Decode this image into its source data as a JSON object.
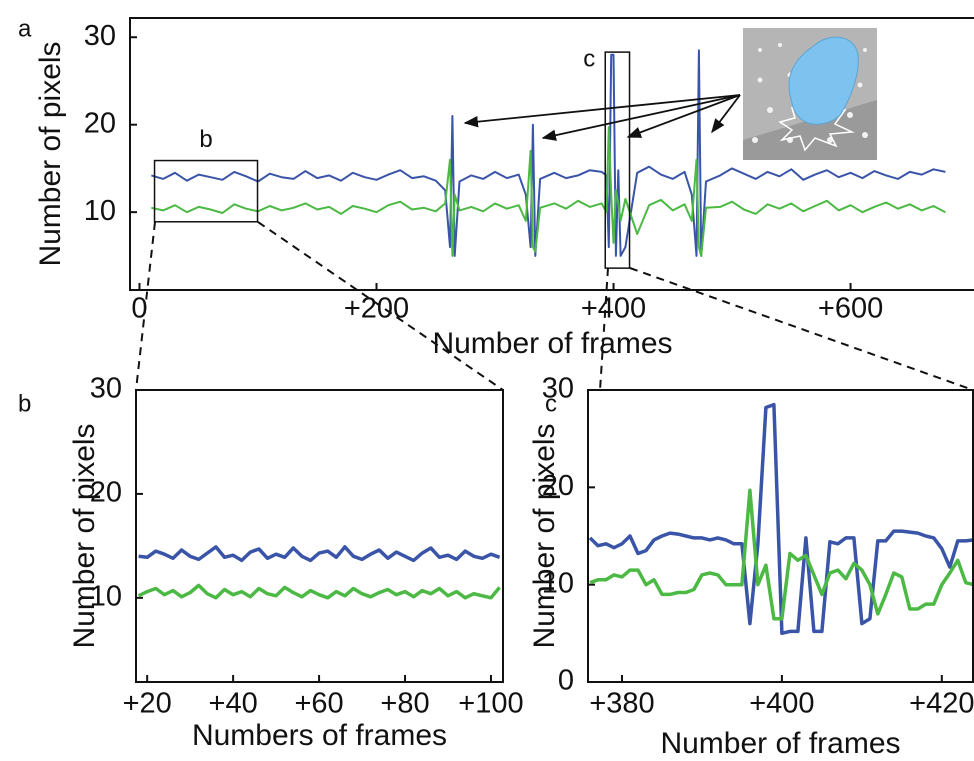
{
  "chart_data": [
    {
      "type": "line",
      "panel_label": "a",
      "ylabel": "Number of pixels",
      "xlabel": "Number of frames",
      "xlim": [
        -8,
        705
      ],
      "ylim": [
        1.1,
        32.2
      ],
      "xticks": [
        0,
        {
          "value": 200,
          "label": "+200"
        },
        {
          "value": 400,
          "label": "+400"
        },
        {
          "value": 600,
          "label": "+600"
        }
      ],
      "yticks": [
        10,
        20,
        30
      ],
      "x": [
        10,
        20,
        30,
        40,
        50,
        60,
        70,
        80,
        90,
        100,
        110,
        120,
        130,
        140,
        150,
        160,
        170,
        180,
        190,
        200,
        210,
        220,
        230,
        240,
        250,
        258,
        262,
        264,
        266,
        270,
        280,
        290,
        300,
        310,
        320,
        326,
        330,
        332,
        334,
        338,
        350,
        360,
        370,
        380,
        390,
        394,
        396,
        398,
        400,
        402,
        404,
        406,
        410,
        420,
        430,
        440,
        450,
        460,
        466,
        470,
        472,
        474,
        478,
        490,
        500,
        510,
        520,
        530,
        540,
        550,
        560,
        570,
        580,
        590,
        600,
        610,
        620,
        630,
        640,
        650,
        660,
        670,
        680
      ],
      "series": [
        {
          "color": "#3a55a8",
          "values": [
            14.2,
            13.8,
            14.5,
            13.6,
            14.3,
            14.0,
            13.7,
            14.6,
            14.1,
            13.5,
            14.4,
            14.0,
            13.8,
            14.7,
            13.9,
            14.2,
            13.6,
            14.5,
            14.0,
            13.7,
            14.3,
            14.8,
            13.9,
            14.1,
            13.6,
            12.5,
            6,
            21,
            5,
            13.5,
            14.2,
            13.8,
            14.6,
            13.9,
            14.3,
            12,
            6,
            20,
            5,
            13.8,
            14.5,
            13.9,
            14.2,
            14.8,
            14.6,
            14.2,
            6,
            28,
            28,
            5,
            14.8,
            5,
            6,
            14.5,
            15.2,
            14.3,
            13.8,
            14.6,
            12,
            5,
            28.5,
            5,
            13.5,
            14.2,
            15,
            14.4,
            13.8,
            14.6,
            14.1,
            14.9,
            13.7,
            14.3,
            14.8,
            14.0,
            14.5,
            13.9,
            14.7,
            14.2,
            13.8,
            14.6,
            14.3,
            14.9,
            14.6
          ]
        },
        {
          "color": "#4cb944",
          "values": [
            10.5,
            10.2,
            10.8,
            10.0,
            10.6,
            10.3,
            9.9,
            10.9,
            10.4,
            10.1,
            10.7,
            10.2,
            10.5,
            11.0,
            10.3,
            10.6,
            9.8,
            10.7,
            10.4,
            10.0,
            10.8,
            11.2,
            10.3,
            10.5,
            10.1,
            11,
            16,
            5,
            12,
            10.2,
            10.6,
            10.1,
            11.0,
            10.4,
            10.8,
            9,
            17,
            6,
            5.5,
            10.5,
            11.0,
            10.4,
            11.3,
            10.6,
            11,
            10,
            19.7,
            12,
            6.5,
            12.5,
            11,
            9,
            11.5,
            7.5,
            10.8,
            11.4,
            10.2,
            10.9,
            9,
            16,
            6,
            5,
            10.5,
            10.6,
            11.2,
            10.3,
            9.8,
            10.9,
            10.4,
            11.0,
            10.1,
            10.7,
            11.3,
            10.2,
            10.8,
            10.0,
            10.6,
            11.1,
            10.4,
            10.9,
            10.2,
            10.7,
            10.0
          ]
        }
      ],
      "zoom_boxes": [
        {
          "label": "b",
          "xlim": [
            12.7,
            99.6
          ],
          "ylim": [
            8.9,
            15.9
          ]
        },
        {
          "label": "c",
          "xlim": [
            393,
            413.5
          ],
          "ylim": [
            3.6,
            28.3
          ]
        }
      ]
    },
    {
      "type": "line",
      "panel_label": "b",
      "ylabel": "Number of pixels",
      "xlabel": "Numbers of frames",
      "xlim": [
        17.4,
        102.8
      ],
      "ylim": [
        1.9,
        30
      ],
      "xticks": [
        {
          "value": 20,
          "label": "+20"
        },
        {
          "value": 40,
          "label": "+40"
        },
        {
          "value": 60,
          "label": "+60"
        },
        {
          "value": 80,
          "label": "+80"
        },
        {
          "value": 100,
          "label": "+100"
        }
      ],
      "yticks": [
        10,
        20,
        30
      ],
      "x": [
        18,
        20,
        22,
        24,
        26,
        28,
        30,
        32,
        34,
        36,
        38,
        40,
        42,
        44,
        46,
        48,
        50,
        52,
        54,
        56,
        58,
        60,
        62,
        64,
        66,
        68,
        70,
        72,
        74,
        76,
        78,
        80,
        82,
        84,
        86,
        88,
        90,
        92,
        94,
        96,
        98,
        100,
        102
      ],
      "series": [
        {
          "color": "#3a55a8",
          "values": [
            14.0,
            13.9,
            14.5,
            14.2,
            13.8,
            14.6,
            14.0,
            13.7,
            14.3,
            14.9,
            13.9,
            14.1,
            13.6,
            14.4,
            14.7,
            13.8,
            14.2,
            13.9,
            14.8,
            14.0,
            13.6,
            14.3,
            14.5,
            13.9,
            14.9,
            14.0,
            13.7,
            14.2,
            14.6,
            13.8,
            14.4,
            14.0,
            13.6,
            14.3,
            14.8,
            13.9,
            14.1,
            13.7,
            14.5,
            14.0,
            13.8,
            14.2,
            13.9
          ]
        },
        {
          "color": "#4cb944",
          "values": [
            10.2,
            10.6,
            10.9,
            10.3,
            10.7,
            10.1,
            10.5,
            11.2,
            10.4,
            10.0,
            10.8,
            10.3,
            10.6,
            10.1,
            10.9,
            10.4,
            10.2,
            11.0,
            10.5,
            10.1,
            10.7,
            10.3,
            10.0,
            10.6,
            10.2,
            10.9,
            10.4,
            10.1,
            10.5,
            10.8,
            10.3,
            10.6,
            10.1,
            10.7,
            10.4,
            10.9,
            10.2,
            10.6,
            10.0,
            10.4,
            10.2,
            10.0,
            11.0
          ]
        }
      ]
    },
    {
      "type": "line",
      "panel_label": "c",
      "ylabel": "Number of pixels",
      "xlabel": "Number of frames",
      "xlim": [
        375.75,
        423.9
      ],
      "ylim": [
        0,
        30
      ],
      "xticks": [
        {
          "value": 380,
          "label": "+380"
        },
        {
          "value": 400,
          "label": "+400"
        },
        {
          "value": 420,
          "label": "+420"
        }
      ],
      "yticks": [
        0,
        10,
        20,
        30
      ],
      "x": [
        376,
        377,
        378,
        379,
        380,
        381,
        382,
        383,
        384,
        385,
        386,
        387,
        388,
        389,
        390,
        391,
        392,
        393,
        394,
        395,
        396,
        397,
        398,
        399,
        400,
        401,
        402,
        403,
        404,
        405,
        406,
        407,
        408,
        409,
        410,
        411,
        412,
        413,
        414,
        415,
        416,
        417,
        418,
        419,
        420,
        421,
        422,
        423,
        424
      ],
      "series": [
        {
          "color": "#3a55a8",
          "values": [
            14.8,
            14,
            14.2,
            13.8,
            14.2,
            15,
            13.2,
            13.5,
            14.6,
            15,
            15.3,
            15.2,
            15,
            14.8,
            14.8,
            14.6,
            14.8,
            14.6,
            14.2,
            14.2,
            6,
            14.2,
            28.2,
            28.5,
            5,
            5.2,
            5.2,
            14.8,
            5.2,
            5.2,
            14.4,
            14.2,
            14.8,
            14.8,
            6,
            6.5,
            14.5,
            14.5,
            15.5,
            15.5,
            15.4,
            15.3,
            15,
            14.8,
            13.7,
            11.8,
            14.5,
            14.5,
            14.6
          ]
        },
        {
          "color": "#4cb944",
          "values": [
            10.2,
            10.5,
            10.5,
            11,
            10.8,
            11.5,
            11.5,
            10,
            10.5,
            9,
            9,
            9.2,
            9.2,
            9.5,
            11,
            11.2,
            11,
            10,
            10,
            10,
            19.7,
            10,
            12,
            6.5,
            6.5,
            13.2,
            12.5,
            13,
            11,
            9,
            11.2,
            11.5,
            10.6,
            12.2,
            11.5,
            10,
            7,
            9,
            11.2,
            10.8,
            7.5,
            7.5,
            8,
            8,
            10,
            11.2,
            12.5,
            10.2,
            10
          ]
        }
      ]
    }
  ]
}
